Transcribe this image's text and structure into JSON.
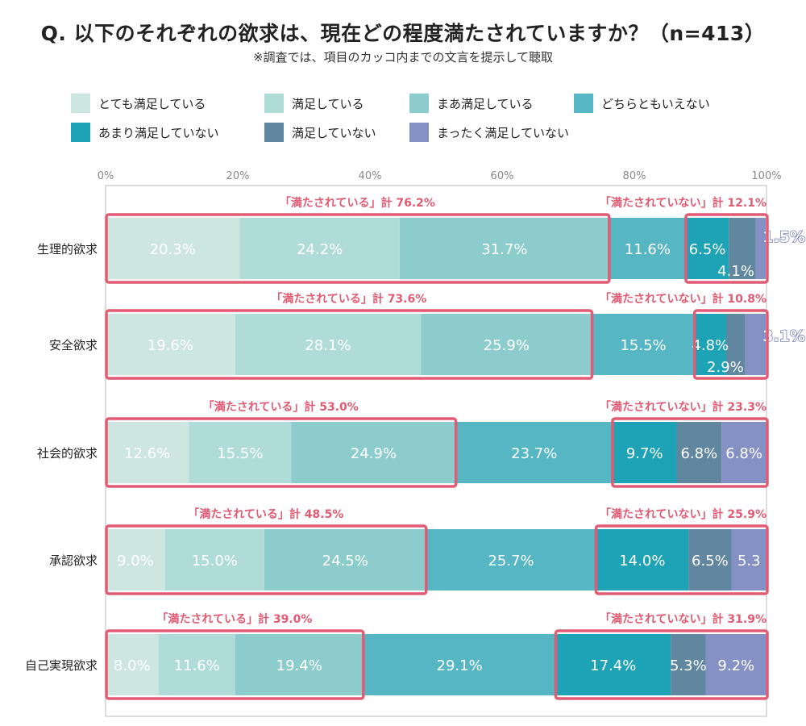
{
  "header": {
    "title": "Q. 以下のそれぞれの欲求は、現在どの程度満たされていますか？（n=413）",
    "note": "※調査では、項目のカッコ内までの文言を提示して聴取"
  },
  "chart_data": {
    "type": "bar",
    "orientation": "horizontal",
    "stacked": true,
    "percent_stacked": true,
    "sample_size": 413,
    "x_ticks": [
      "0%",
      "20%",
      "40%",
      "60%",
      "80%",
      "100%"
    ],
    "xlim": [
      0,
      100
    ],
    "legend_position": "top",
    "categories": [
      "生理的欲求",
      "安全欲求",
      "社会的欲求",
      "承認欲求",
      "自己実現欲求"
    ],
    "series": [
      {
        "name": "とても満足している",
        "color": "#cde6e0",
        "values": [
          20.3,
          19.6,
          12.6,
          9.0,
          8.0
        ]
      },
      {
        "name": "満足している",
        "color": "#b0dcd8",
        "values": [
          24.2,
          28.1,
          15.5,
          15.0,
          11.6
        ]
      },
      {
        "name": "まあ満足している",
        "color": "#8dcccc",
        "values": [
          31.7,
          25.9,
          24.9,
          24.5,
          19.4
        ]
      },
      {
        "name": "どちらともいえない",
        "color": "#56b6c3",
        "values": [
          11.6,
          15.5,
          23.7,
          25.7,
          29.1
        ]
      },
      {
        "name": "あまり満足していない",
        "color": "#1ea2b5",
        "values": [
          6.5,
          4.8,
          9.7,
          14.0,
          17.4
        ]
      },
      {
        "name": "満足していない",
        "color": "#60879f",
        "values": [
          4.1,
          2.9,
          6.8,
          6.5,
          5.3
        ]
      },
      {
        "name": "まったく満足していない",
        "color": "#8591c4",
        "values": [
          1.5,
          3.1,
          6.8,
          5.3,
          9.2
        ]
      }
    ],
    "value_labels": [
      [
        "20.3%",
        "24.2%",
        "31.7%",
        "11.6%",
        "6.5%",
        "4.1%",
        "1.5%"
      ],
      [
        "19.6%",
        "28.1%",
        "25.9%",
        "15.5%",
        "4.8%",
        "2.9%",
        "3.1%"
      ],
      [
        "12.6%",
        "15.5%",
        "24.9%",
        "23.7%",
        "9.7%",
        "6.8%",
        "6.8%"
      ],
      [
        "9.0%",
        "15.0%",
        "24.5%",
        "25.7%",
        "14.0%",
        "6.5%",
        "5.3"
      ],
      [
        "8.0%",
        "11.6%",
        "19.4%",
        "29.1%",
        "17.4%",
        "5.3%",
        "9.2%"
      ]
    ],
    "satisfied_totals": [
      "「満たされている」計 76.2%",
      "「満たされている」計 73.6%",
      "「満たされている」計 53.0%",
      "「満たされている」計 48.5%",
      "「満たされている」計 39.0%"
    ],
    "unsatisfied_totals": [
      "「満たされていない」計 12.1%",
      "「満たされていない」計 10.8%",
      "「満たされていない」計 23.3%",
      "「満たされていない」計 25.9%",
      "「満たされていない」計 31.9%"
    ],
    "highlight_color": "#e05b73"
  }
}
